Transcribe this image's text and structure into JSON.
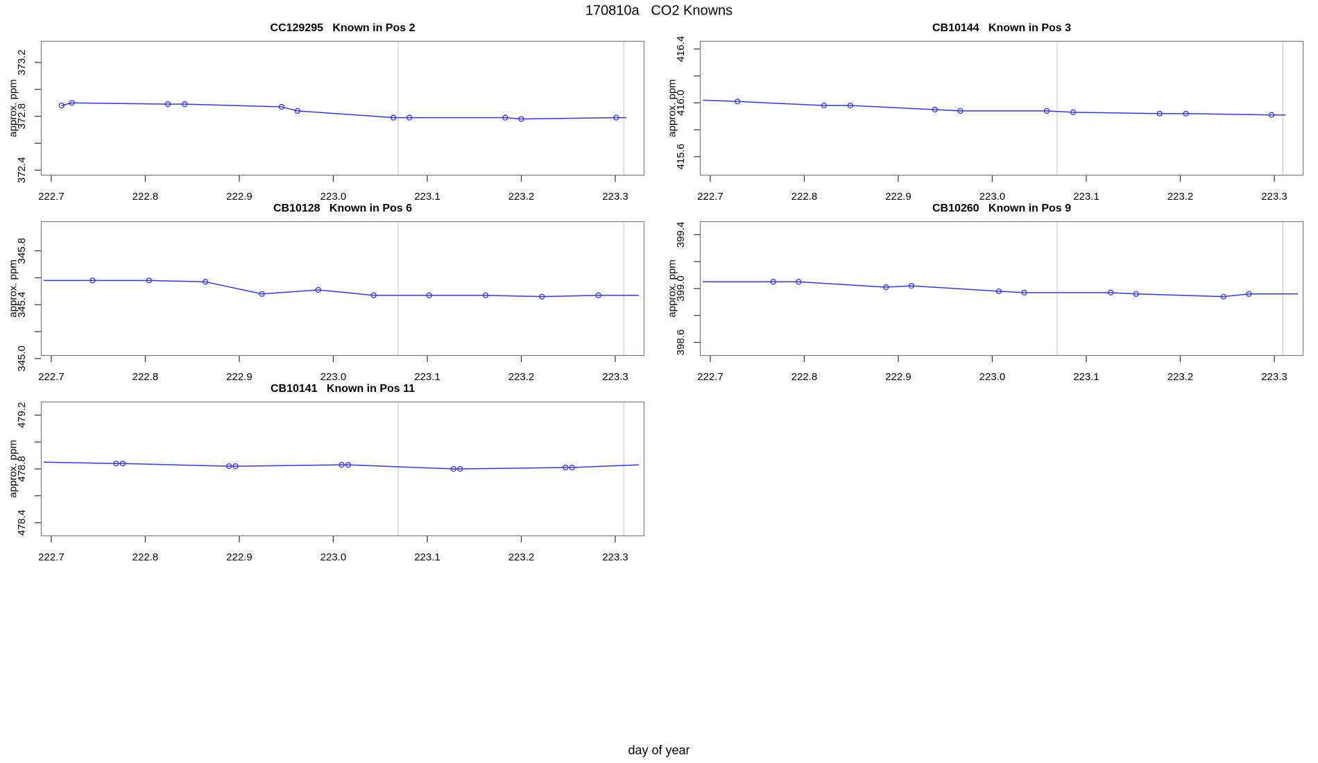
{
  "title": "170810a   CO2 Knowns",
  "xlabel": "day of year",
  "palette": {
    "line_color": "#3434f0",
    "grid_color": "#cfcfcf",
    "box_color": "#7a7a7a",
    "tick_color": "#303030",
    "text_color": "#000000"
  },
  "chart_data": [
    {
      "type": "line",
      "title": "CC129295   Known in Pos 2",
      "ylabel": "approx. ppm",
      "xlim": [
        222.689,
        223.331
      ],
      "ylim": [
        372.36,
        373.36
      ],
      "xticks": [
        222.7,
        222.8,
        222.9,
        223.0,
        223.1,
        223.2,
        223.3
      ],
      "yticks": [
        372.4,
        372.6,
        372.8,
        373.0,
        373.2
      ],
      "ytick_labels": [
        "372.4",
        "",
        "372.8",
        "",
        "373.2"
      ],
      "vlines": [
        223.069,
        223.309
      ],
      "x": [
        222.711,
        222.722,
        222.824,
        222.842,
        222.945,
        222.962,
        223.064,
        223.081,
        223.183,
        223.2,
        223.301
      ],
      "y": [
        372.88,
        372.9,
        372.89,
        372.89,
        372.87,
        372.84,
        372.79,
        372.79,
        372.79,
        372.78,
        372.79
      ],
      "line_x": [
        222.711,
        222.722,
        222.824,
        222.842,
        222.945,
        222.962,
        223.064,
        223.081,
        223.183,
        223.2,
        223.301,
        223.312
      ],
      "line_y": [
        372.88,
        372.9,
        372.89,
        372.89,
        372.87,
        372.84,
        372.79,
        372.79,
        372.79,
        372.78,
        372.79,
        372.79
      ]
    },
    {
      "type": "line",
      "title": "CB10144   Known in Pos 3",
      "ylabel": "approx. ppm",
      "xlim": [
        222.689,
        223.331
      ],
      "ylim": [
        415.46,
        416.46
      ],
      "xticks": [
        222.7,
        222.8,
        222.9,
        223.0,
        223.1,
        223.2,
        223.3
      ],
      "yticks": [
        415.6,
        415.8,
        416.0,
        416.2,
        416.4
      ],
      "ytick_labels": [
        "415.6",
        "",
        "416.0",
        "",
        "416.4"
      ],
      "vlines": [
        223.069,
        223.309
      ],
      "x": [
        222.729,
        222.821,
        222.849,
        222.939,
        222.966,
        223.058,
        223.086,
        223.178,
        223.206,
        223.297
      ],
      "y": [
        416.01,
        415.98,
        415.98,
        415.95,
        415.94,
        415.94,
        415.93,
        415.92,
        415.92,
        415.91
      ],
      "line_x": [
        222.692,
        222.729,
        222.821,
        222.849,
        222.939,
        222.966,
        223.058,
        223.086,
        223.178,
        223.206,
        223.297,
        223.312
      ],
      "line_y": [
        416.02,
        416.01,
        415.98,
        415.98,
        415.95,
        415.94,
        415.94,
        415.93,
        415.92,
        415.92,
        415.91,
        415.91
      ]
    },
    {
      "type": "line",
      "title": "CB10128   Known in Pos 6",
      "ylabel": "approx. ppm",
      "xlim": [
        222.689,
        223.331
      ],
      "ylim": [
        345.02,
        346.02
      ],
      "xticks": [
        222.7,
        222.8,
        222.9,
        223.0,
        223.1,
        223.2,
        223.3
      ],
      "yticks": [
        345.0,
        345.2,
        345.4,
        345.6,
        345.8
      ],
      "ytick_labels": [
        "345.0",
        "",
        "345.4",
        "",
        "345.8"
      ],
      "vlines": [
        223.069,
        223.309
      ],
      "x": [
        222.744,
        222.804,
        222.864,
        222.924,
        222.984,
        223.043,
        223.102,
        223.162,
        223.222,
        223.282
      ],
      "y": [
        345.58,
        345.58,
        345.57,
        345.48,
        345.51,
        345.47,
        345.47,
        345.47,
        345.46,
        345.47
      ],
      "line_x": [
        222.692,
        222.744,
        222.804,
        222.864,
        222.924,
        222.984,
        223.043,
        223.102,
        223.162,
        223.222,
        223.282,
        223.325
      ],
      "line_y": [
        345.58,
        345.58,
        345.58,
        345.57,
        345.48,
        345.51,
        345.47,
        345.47,
        345.47,
        345.46,
        345.47,
        345.47
      ]
    },
    {
      "type": "line",
      "title": "CB10260   Known in Pos 9",
      "ylabel": "approx. ppm",
      "xlim": [
        222.689,
        223.331
      ],
      "ylim": [
        398.5,
        399.5
      ],
      "xticks": [
        222.7,
        222.8,
        222.9,
        223.0,
        223.1,
        223.2,
        223.3
      ],
      "yticks": [
        398.6,
        398.8,
        399.0,
        399.2,
        399.4
      ],
      "ytick_labels": [
        "398.6",
        "",
        "399.0",
        "",
        "399.4"
      ],
      "vlines": [
        223.069,
        223.309
      ],
      "x": [
        222.767,
        222.794,
        222.887,
        222.914,
        223.007,
        223.034,
        223.126,
        223.153,
        223.246,
        223.273
      ],
      "y": [
        399.05,
        399.05,
        399.01,
        399.02,
        398.98,
        398.97,
        398.97,
        398.96,
        398.94,
        398.96
      ],
      "line_x": [
        222.692,
        222.767,
        222.794,
        222.887,
        222.914,
        223.007,
        223.034,
        223.126,
        223.153,
        223.246,
        223.273,
        223.325
      ],
      "line_y": [
        399.05,
        399.05,
        399.05,
        399.01,
        399.02,
        398.98,
        398.97,
        398.97,
        398.96,
        398.94,
        398.96,
        398.96
      ]
    },
    {
      "type": "line",
      "title": "CB10141   Known in Pos 11",
      "ylabel": "approx. ppm",
      "xlim": [
        222.689,
        223.331
      ],
      "ylim": [
        478.3,
        479.3
      ],
      "xticks": [
        222.7,
        222.8,
        222.9,
        223.0,
        223.1,
        223.2,
        223.3
      ],
      "yticks": [
        478.4,
        478.6,
        478.8,
        479.0,
        479.2
      ],
      "ytick_labels": [
        "478.4",
        "",
        "478.8",
        "",
        "479.2"
      ],
      "vlines": [
        223.069,
        223.309
      ],
      "x": [
        222.769,
        222.776,
        222.889,
        222.896,
        223.009,
        223.016,
        223.128,
        223.135,
        223.247,
        223.254
      ],
      "y": [
        478.84,
        478.84,
        478.82,
        478.82,
        478.83,
        478.83,
        478.8,
        478.8,
        478.81,
        478.81
      ],
      "line_x": [
        222.692,
        222.769,
        222.776,
        222.889,
        222.896,
        223.009,
        223.016,
        223.128,
        223.135,
        223.247,
        223.254,
        223.325
      ],
      "line_y": [
        478.85,
        478.84,
        478.84,
        478.82,
        478.82,
        478.83,
        478.83,
        478.8,
        478.8,
        478.81,
        478.81,
        478.83
      ]
    }
  ]
}
